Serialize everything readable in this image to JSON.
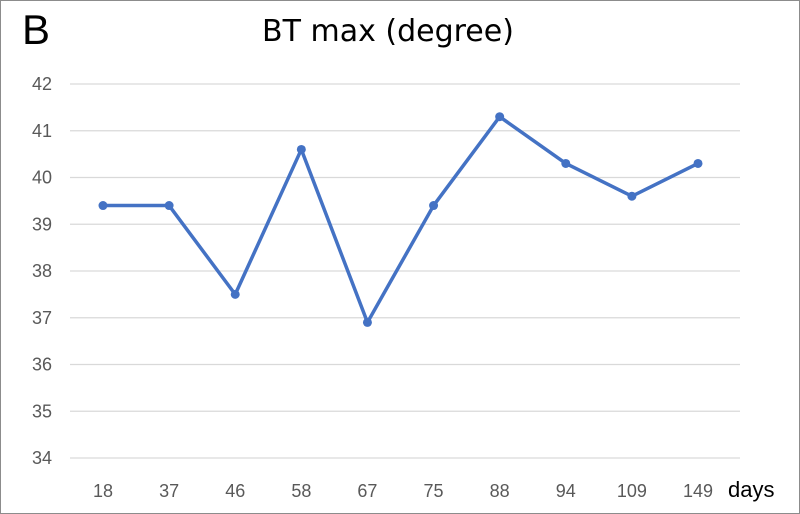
{
  "panel_label": "B",
  "chart_data": {
    "type": "line",
    "title": "BT max (degree)",
    "xlabel": "days",
    "ylabel": "",
    "categories": [
      "18",
      "37",
      "46",
      "58",
      "67",
      "75",
      "88",
      "94",
      "109",
      "149"
    ],
    "series": [
      {
        "values": [
          39.4,
          39.4,
          37.5,
          40.6,
          36.9,
          39.4,
          41.3,
          40.3,
          39.6,
          40.3
        ]
      }
    ],
    "ylim": [
      34,
      42
    ],
    "yticks": [
      34,
      35,
      36,
      37,
      38,
      39,
      40,
      41,
      42
    ],
    "grid": true,
    "line_color": "#4472c4",
    "grid_color": "#d9d9d9"
  }
}
